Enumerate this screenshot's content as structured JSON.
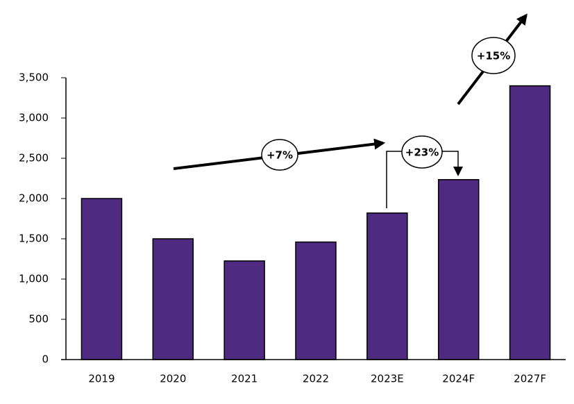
{
  "chart_data": {
    "type": "bar",
    "categories": [
      "2019",
      "2020",
      "2021",
      "2022",
      "2023E",
      "2024F",
      "2027F"
    ],
    "values": [
      2000,
      1500,
      1225,
      1460,
      1820,
      2235,
      3400
    ],
    "color": "#4e2a80",
    "ylim": [
      0,
      3500
    ],
    "yticks": [
      0,
      500,
      {
        "value": 1000,
        "label": "1,000"
      },
      {
        "value": 1500,
        "label": "1,500"
      },
      {
        "value": 2000,
        "label": "2,000"
      },
      {
        "value": 2500,
        "label": "2,500"
      },
      {
        "value": 3000,
        "label": "3,000"
      },
      {
        "value": 3500,
        "label": "3,500"
      }
    ],
    "grid": false,
    "annotations": [
      "+7%",
      "+23%",
      "+15%"
    ]
  }
}
